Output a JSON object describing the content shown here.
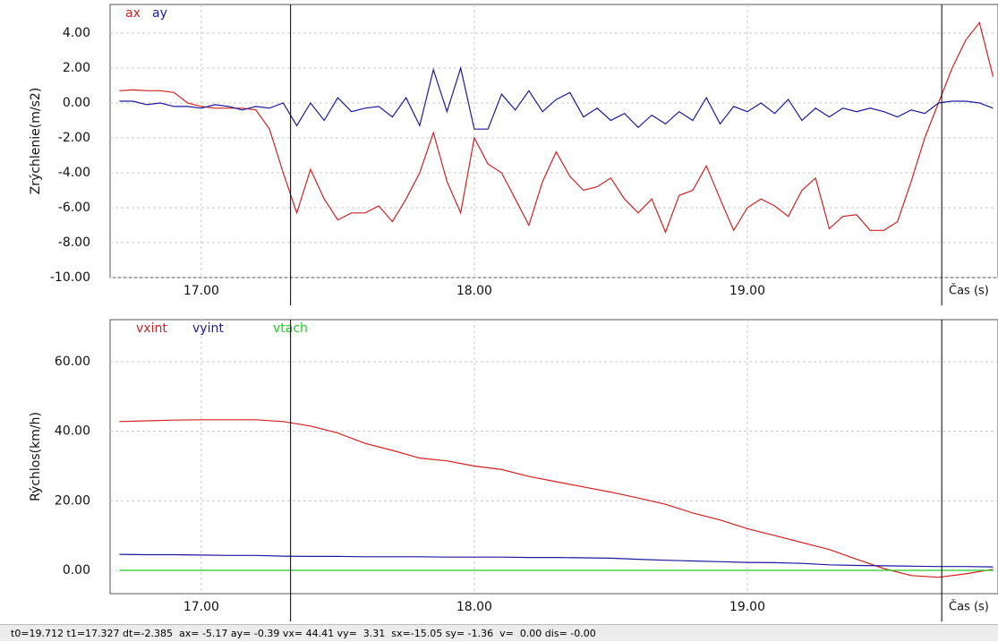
{
  "chart_data": [
    {
      "type": "line",
      "ylabel": "Zrýchlenie(m/s2)",
      "xlabel": "Čas (s)",
      "xlim": [
        16.666,
        19.918
      ],
      "ylim": [
        -10,
        5.64
      ],
      "xticks": [
        {
          "value": 17,
          "label": "17.00"
        },
        {
          "value": 18,
          "label": "18.00"
        },
        {
          "value": 19,
          "label": "19.00"
        }
      ],
      "yticks": [
        {
          "value": -10,
          "label": "-10.00"
        },
        {
          "value": -8,
          "label": "-8.00"
        },
        {
          "value": -6,
          "label": "-6.00"
        },
        {
          "value": -4,
          "label": "-4.00"
        },
        {
          "value": -2,
          "label": "-2.00"
        },
        {
          "value": 0,
          "label": "0.00"
        },
        {
          "value": 2,
          "label": "2.00"
        },
        {
          "value": 4,
          "label": "4.00"
        }
      ],
      "grid": true,
      "x": [
        16.7,
        16.75,
        16.8,
        16.85,
        16.9,
        16.95,
        17.0,
        17.05,
        17.1,
        17.15,
        17.2,
        17.25,
        17.3,
        17.35,
        17.4,
        17.45,
        17.5,
        17.55,
        17.6,
        17.65,
        17.7,
        17.75,
        17.8,
        17.85,
        17.9,
        17.95,
        18.0,
        18.05,
        18.1,
        18.15,
        18.2,
        18.25,
        18.3,
        18.35,
        18.4,
        18.45,
        18.5,
        18.55,
        18.6,
        18.65,
        18.7,
        18.75,
        18.8,
        18.85,
        18.9,
        18.95,
        19.0,
        19.05,
        19.1,
        19.15,
        19.2,
        19.25,
        19.3,
        19.35,
        19.4,
        19.45,
        19.5,
        19.55,
        19.6,
        19.65,
        19.7,
        19.75,
        19.8,
        19.85,
        19.9
      ],
      "series": [
        {
          "name": "ax",
          "color": "#d42020",
          "values": [
            0.7,
            0.75,
            0.7,
            0.7,
            0.6,
            0.0,
            -0.2,
            -0.3,
            -0.3,
            -0.3,
            -0.4,
            -1.5,
            -4.0,
            -6.3,
            -3.8,
            -5.5,
            -6.7,
            -6.3,
            -6.3,
            -5.9,
            -6.8,
            -5.5,
            -4.0,
            -1.7,
            -4.5,
            -6.3,
            -2.0,
            -3.5,
            -4.0,
            -5.5,
            -7.0,
            -4.5,
            -2.8,
            -4.2,
            -5.0,
            -4.8,
            -4.3,
            -5.5,
            -6.3,
            -5.5,
            -7.4,
            -5.3,
            -5.0,
            -3.6,
            -5.5,
            -7.3,
            -6.0,
            -5.5,
            -5.9,
            -6.5,
            -5.0,
            -4.3,
            -7.2,
            -6.5,
            -6.4,
            -7.3,
            -7.3,
            -6.8,
            -4.5,
            -2.0,
            0.0,
            2.0,
            3.6,
            4.6,
            1.5
          ]
        },
        {
          "name": "ay",
          "color": "#1a1aa0",
          "values": [
            0.1,
            0.1,
            -0.1,
            0.0,
            -0.2,
            -0.2,
            -0.3,
            -0.1,
            -0.2,
            -0.4,
            -0.2,
            -0.3,
            0.0,
            -1.3,
            0.0,
            -1.0,
            0.3,
            -0.5,
            -0.3,
            -0.2,
            -0.8,
            0.3,
            -1.3,
            1.9,
            -0.5,
            2.0,
            -1.5,
            -1.5,
            0.5,
            -0.4,
            0.7,
            -0.5,
            0.2,
            0.6,
            -0.8,
            -0.3,
            -1.0,
            -0.6,
            -1.4,
            -0.7,
            -1.2,
            -0.5,
            -1.0,
            0.3,
            -1.2,
            -0.2,
            -0.5,
            0.0,
            -0.6,
            0.2,
            -1.0,
            -0.3,
            -0.8,
            -0.3,
            -0.5,
            -0.3,
            -0.5,
            -0.8,
            -0.4,
            -0.6,
            0.0,
            0.1,
            0.1,
            0.0,
            -0.3
          ]
        }
      ]
    },
    {
      "type": "line",
      "ylabel": "Rýchlos(km/h)",
      "xlabel": "Čas (s)",
      "xlim": [
        16.666,
        19.918
      ],
      "ylim": [
        -6.7,
        72.1
      ],
      "xticks": [
        {
          "value": 17,
          "label": "17.00"
        },
        {
          "value": 18,
          "label": "18.00"
        },
        {
          "value": 19,
          "label": "19.00"
        }
      ],
      "yticks": [
        {
          "value": 0,
          "label": "0.00"
        },
        {
          "value": 20,
          "label": "20.00"
        },
        {
          "value": 40,
          "label": "40.00"
        },
        {
          "value": 60,
          "label": "60.00"
        }
      ],
      "grid": true,
      "x": [
        16.7,
        16.8,
        16.9,
        17.0,
        17.1,
        17.2,
        17.3,
        17.4,
        17.5,
        17.6,
        17.7,
        17.8,
        17.9,
        18.0,
        18.1,
        18.2,
        18.3,
        18.4,
        18.5,
        18.6,
        18.7,
        18.8,
        18.9,
        19.0,
        19.1,
        19.2,
        19.3,
        19.4,
        19.5,
        19.6,
        19.7,
        19.8,
        19.9
      ],
      "series": [
        {
          "name": "vxint",
          "color": "#d42020",
          "values": [
            42.8,
            43.0,
            43.2,
            43.3,
            43.3,
            43.3,
            42.8,
            41.5,
            39.5,
            36.5,
            34.5,
            32.3,
            31.5,
            30.0,
            29.0,
            27.0,
            25.5,
            24.0,
            22.5,
            20.8,
            19.0,
            16.5,
            14.5,
            12.0,
            10.0,
            8.0,
            6.0,
            3.2,
            0.5,
            -1.5,
            -2.0,
            -1.0,
            0.3
          ]
        },
        {
          "name": "vyint",
          "color": "#1a1aa0",
          "values": [
            4.6,
            4.5,
            4.5,
            4.4,
            4.3,
            4.3,
            4.1,
            4.0,
            4.0,
            3.9,
            3.9,
            3.9,
            3.8,
            3.8,
            3.8,
            3.7,
            3.7,
            3.6,
            3.5,
            3.2,
            2.9,
            2.7,
            2.5,
            2.3,
            2.2,
            2.0,
            1.6,
            1.4,
            1.3,
            1.2,
            1.1,
            1.1,
            1.0
          ]
        },
        {
          "name": "vtach",
          "color": "#22cc22",
          "values": [
            0,
            0,
            0,
            0,
            0,
            0,
            0,
            0,
            0,
            0,
            0,
            0,
            0,
            0,
            0,
            0,
            0,
            0,
            0,
            0,
            0,
            0,
            0,
            0,
            0,
            0,
            0,
            0,
            0,
            0,
            0,
            0,
            0
          ]
        }
      ]
    }
  ],
  "cursors": [
    19.712,
    17.327
  ],
  "status_bar": "t0=19.712 t1=17.327 dt=-2.385  ax= -5.17 ay= -0.39 vx= 44.41 vy=  3.31  sx=-15.05 sy= -1.36  v=  0.00 dis= -0.00"
}
